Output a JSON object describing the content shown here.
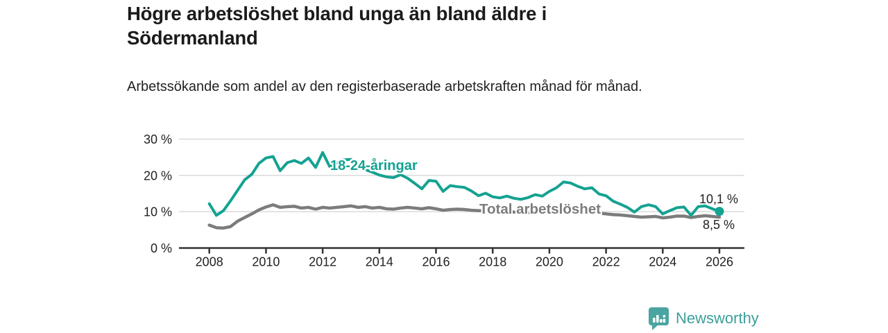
{
  "header": {
    "title": "Högre arbetslöshet bland unga än bland äldre i Södermanland",
    "subtitle": "Arbetssökande som andel av den registerbaserade arbetskraften månad för månad."
  },
  "chart_data": {
    "type": "line",
    "title": "Högre arbetslöshet bland unga än bland äldre i Södermanland",
    "subtitle": "Arbetssökande som andel av den registerbaserade arbetskraften månad för månad.",
    "xlabel": "",
    "ylabel": "",
    "grid": true,
    "legend_position": "inline-labels",
    "ylim": [
      0,
      30
    ],
    "y_ticks": [
      0,
      10,
      20,
      30
    ],
    "y_tick_labels": [
      "0 %",
      "10 %",
      "20 %",
      "30 %"
    ],
    "x_ticks": [
      2008,
      2010,
      2012,
      2014,
      2016,
      2018,
      2020,
      2022,
      2024,
      2026
    ],
    "x_start": 2008.0,
    "x_step": 0.25,
    "x_unit": "year (monthly data shown quarterly)",
    "series": [
      {
        "name": "18-24-åringar",
        "color": "#14a292",
        "end_label": "10,1 %",
        "end_value": 10.1,
        "values": [
          12.2,
          9.0,
          10.3,
          13.0,
          15.9,
          18.8,
          20.3,
          23.3,
          24.8,
          25.2,
          21.3,
          23.5,
          24.1,
          23.3,
          24.8,
          22.2,
          26.3,
          22.4,
          23.4,
          24.3,
          24.4,
          23.1,
          21.6,
          20.9,
          20.1,
          19.6,
          19.4,
          20.2,
          19.2,
          17.8,
          16.3,
          18.6,
          18.4,
          15.6,
          17.2,
          16.9,
          16.7,
          15.7,
          14.4,
          15.1,
          14.1,
          13.8,
          14.3,
          13.7,
          13.4,
          13.9,
          14.7,
          14.3,
          15.6,
          16.6,
          18.2,
          17.9,
          17.0,
          16.3,
          16.6,
          14.9,
          14.4,
          12.9,
          12.1,
          11.2,
          9.9,
          11.4,
          11.9,
          11.4,
          9.4,
          10.3,
          11.1,
          11.3,
          9.0,
          11.4,
          11.6,
          10.8,
          10.1
        ]
      },
      {
        "name": "Total arbetslöshet",
        "color": "#7c7c7c",
        "end_label": "8,5 %",
        "end_value": 8.5,
        "values": [
          6.3,
          5.6,
          5.5,
          5.9,
          7.4,
          8.4,
          9.4,
          10.5,
          11.3,
          11.9,
          11.2,
          11.4,
          11.5,
          11.0,
          11.2,
          10.7,
          11.2,
          11.0,
          11.2,
          11.4,
          11.6,
          11.2,
          11.4,
          11.0,
          11.2,
          10.8,
          10.7,
          11.0,
          11.2,
          11.0,
          10.8,
          11.1,
          10.8,
          10.4,
          10.6,
          10.7,
          10.6,
          10.4,
          10.3,
          10.2,
          10.1,
          10.0,
          10.1,
          9.9,
          9.8,
          9.7,
          9.8,
          9.9,
          10.2,
          10.6,
          10.8,
          10.6,
          10.3,
          10.1,
          9.9,
          9.6,
          9.4,
          9.2,
          9.1,
          8.9,
          8.7,
          8.5,
          8.6,
          8.7,
          8.3,
          8.5,
          8.8,
          8.8,
          8.4,
          8.7,
          8.9,
          8.7,
          8.5
        ]
      }
    ]
  },
  "colors": {
    "accent_teal": "#14a292",
    "series_gray": "#7c7c7c",
    "gridline": "#d9d9d9",
    "axis": "#333333",
    "tick_text": "#222222",
    "logo_teal": "#4aa5a0",
    "brand_text_teal": "#3aa09a"
  },
  "footer": {
    "brand": "Newsworthy"
  }
}
